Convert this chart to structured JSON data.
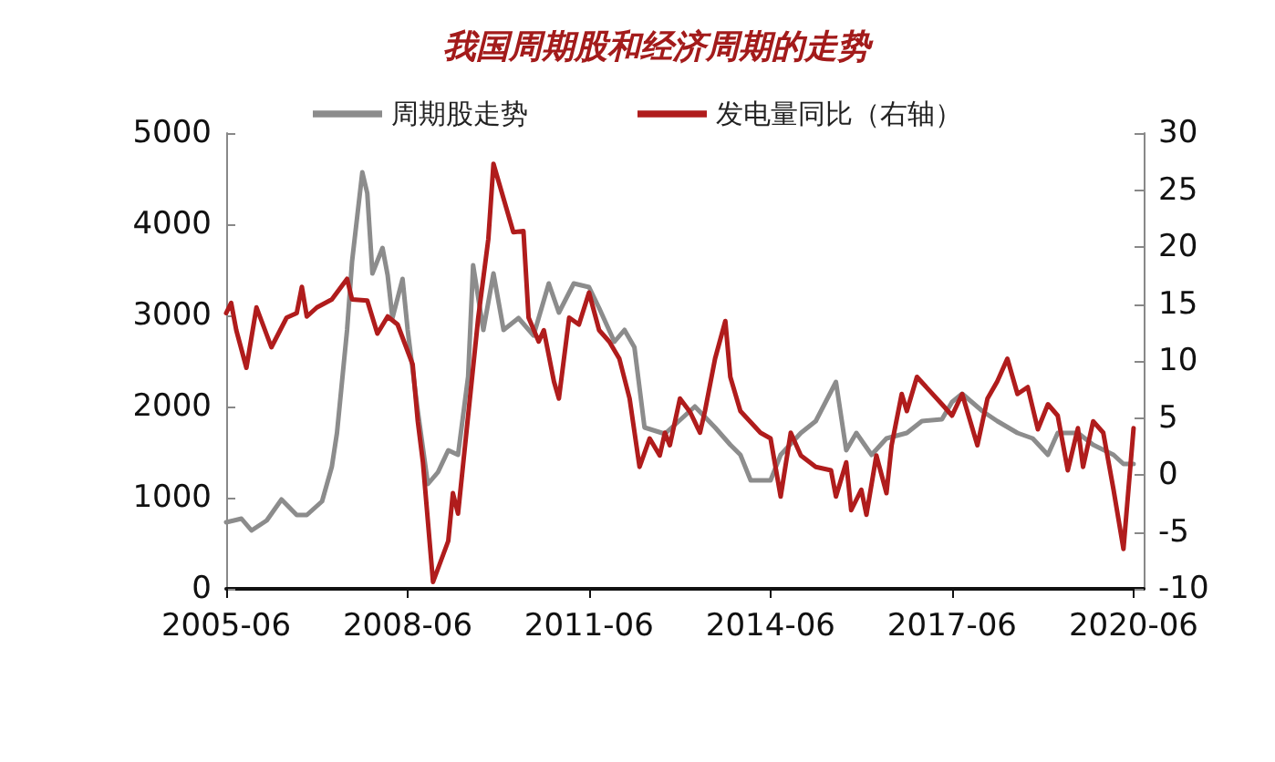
{
  "chart_data": {
    "type": "line",
    "title": "我国周期股和经济周期的走势",
    "xlim": [
      "2005-06",
      "2020-08"
    ],
    "xticks": [
      "2005-06",
      "2008-06",
      "2011-06",
      "2014-06",
      "2017-06",
      "2020-06"
    ],
    "ylim": [
      0,
      5000
    ],
    "yticks": [
      0,
      1000,
      2000,
      3000,
      4000,
      5000
    ],
    "y2lim": [
      -10,
      30
    ],
    "y2ticks": [
      -10,
      -5,
      0,
      5,
      10,
      15,
      20,
      25,
      30
    ],
    "grid": false,
    "legend": "top",
    "marker": "none",
    "line_style": "solid",
    "series": [
      {
        "name": "周期股走势",
        "color": "#8c8c8c",
        "x": [
          "2005-06",
          "2005-09",
          "2005-11",
          "2006-02",
          "2006-05",
          "2006-08",
          "2006-10",
          "2007-01",
          "2007-03",
          "2007-04",
          "2007-06",
          "2007-07",
          "2007-09",
          "2007-10",
          "2007-11",
          "2008-01",
          "2008-02",
          "2008-03",
          "2008-05",
          "2008-06",
          "2008-08",
          "2008-10",
          "2008-12",
          "2009-02",
          "2009-04",
          "2009-06",
          "2009-07",
          "2009-09",
          "2009-11",
          "2010-01",
          "2010-04",
          "2010-07",
          "2010-10",
          "2010-12",
          "2011-03",
          "2011-06",
          "2011-08",
          "2011-11",
          "2012-01",
          "2012-03",
          "2012-05",
          "2012-09",
          "2013-03",
          "2013-07",
          "2013-10",
          "2013-12",
          "2014-02",
          "2014-06",
          "2014-08",
          "2014-12",
          "2015-03",
          "2015-07",
          "2015-09",
          "2015-11",
          "2016-02",
          "2016-05",
          "2016-09",
          "2016-12",
          "2017-04",
          "2017-06",
          "2017-08",
          "2017-12",
          "2018-03",
          "2018-07",
          "2018-10",
          "2019-01",
          "2019-03",
          "2019-07",
          "2019-10",
          "2020-02",
          "2020-04",
          "2020-06"
        ],
        "values": [
          730,
          770,
          640,
          750,
          980,
          810,
          810,
          960,
          1340,
          1710,
          2840,
          3590,
          4570,
          4340,
          3460,
          3740,
          3440,
          2970,
          3400,
          2840,
          1950,
          1150,
          1280,
          1520,
          1470,
          2330,
          3550,
          2840,
          3460,
          2840,
          2970,
          2780,
          3350,
          3030,
          3350,
          3310,
          3080,
          2710,
          2840,
          2650,
          1770,
          1700,
          2000,
          1770,
          1580,
          1470,
          1190,
          1190,
          1470,
          1710,
          1840,
          2270,
          1520,
          1710,
          1470,
          1650,
          1710,
          1840,
          1860,
          2050,
          2140,
          1950,
          1840,
          1710,
          1650,
          1470,
          1710,
          1710,
          1580,
          1470,
          1370,
          1370
        ]
      },
      {
        "name": "发电量同比（右轴）",
        "color": "#b01c1c",
        "axis": "y2",
        "x": [
          "2005-06",
          "2005-07",
          "2005-08",
          "2005-10",
          "2005-12",
          "2006-03",
          "2006-06",
          "2006-08",
          "2006-09",
          "2006-10",
          "2006-12",
          "2007-03",
          "2007-06",
          "2007-07",
          "2007-10",
          "2007-12",
          "2008-02",
          "2008-04",
          "2008-07",
          "2008-08",
          "2008-09",
          "2008-11",
          "2009-02",
          "2009-03",
          "2009-04",
          "2009-06",
          "2009-08",
          "2009-10",
          "2009-11",
          "2010-03",
          "2010-05",
          "2010-06",
          "2010-08",
          "2010-09",
          "2010-11",
          "2010-12",
          "2011-02",
          "2011-04",
          "2011-06",
          "2011-08",
          "2011-10",
          "2011-12",
          "2012-02",
          "2012-04",
          "2012-06",
          "2012-08",
          "2012-09",
          "2012-10",
          "2012-12",
          "2013-02",
          "2013-04",
          "2013-05",
          "2013-07",
          "2013-09",
          "2013-10",
          "2013-12",
          "2014-04",
          "2014-06",
          "2014-08",
          "2014-10",
          "2014-12",
          "2015-03",
          "2015-06",
          "2015-07",
          "2015-09",
          "2015-10",
          "2015-12",
          "2016-01",
          "2016-03",
          "2016-05",
          "2016-06",
          "2016-08",
          "2016-09",
          "2016-11",
          "2017-04",
          "2017-06",
          "2017-08",
          "2017-11",
          "2018-01",
          "2018-03",
          "2018-05",
          "2018-07",
          "2018-09",
          "2018-11",
          "2019-01",
          "2019-03",
          "2019-05",
          "2019-07",
          "2019-08",
          "2019-10",
          "2019-12",
          "2020-02",
          "2020-04",
          "2020-05",
          "2020-06"
        ],
        "values": [
          14.2,
          15.1,
          12.7,
          9.4,
          14.7,
          11.2,
          13.8,
          14.2,
          16.5,
          13.9,
          14.7,
          15.4,
          17.2,
          15.4,
          15.3,
          12.4,
          13.9,
          13.2,
          9.7,
          4.7,
          1.1,
          -9.4,
          -5.8,
          -1.6,
          -3.4,
          5.2,
          13.8,
          20.7,
          27.3,
          21.3,
          21.4,
          13.8,
          11.7,
          12.7,
          8.2,
          6.7,
          13.8,
          13.2,
          16.0,
          12.7,
          11.7,
          10.2,
          6.7,
          0.7,
          3.2,
          1.7,
          3.7,
          2.6,
          6.7,
          5.5,
          3.7,
          5.6,
          10.2,
          13.5,
          8.6,
          5.6,
          3.7,
          3.2,
          -1.9,
          3.7,
          1.7,
          0.7,
          0.4,
          -1.9,
          1.1,
          -3.1,
          -1.3,
          -3.5,
          1.7,
          -1.6,
          2.6,
          7.1,
          5.6,
          8.6,
          6.2,
          5.2,
          7.1,
          2.6,
          6.7,
          8.2,
          10.2,
          7.1,
          7.7,
          4.0,
          6.2,
          5.2,
          0.4,
          4.1,
          0.7,
          4.7,
          3.7,
          -1.3,
          -6.5,
          -1.3,
          4.1
        ]
      }
    ]
  }
}
